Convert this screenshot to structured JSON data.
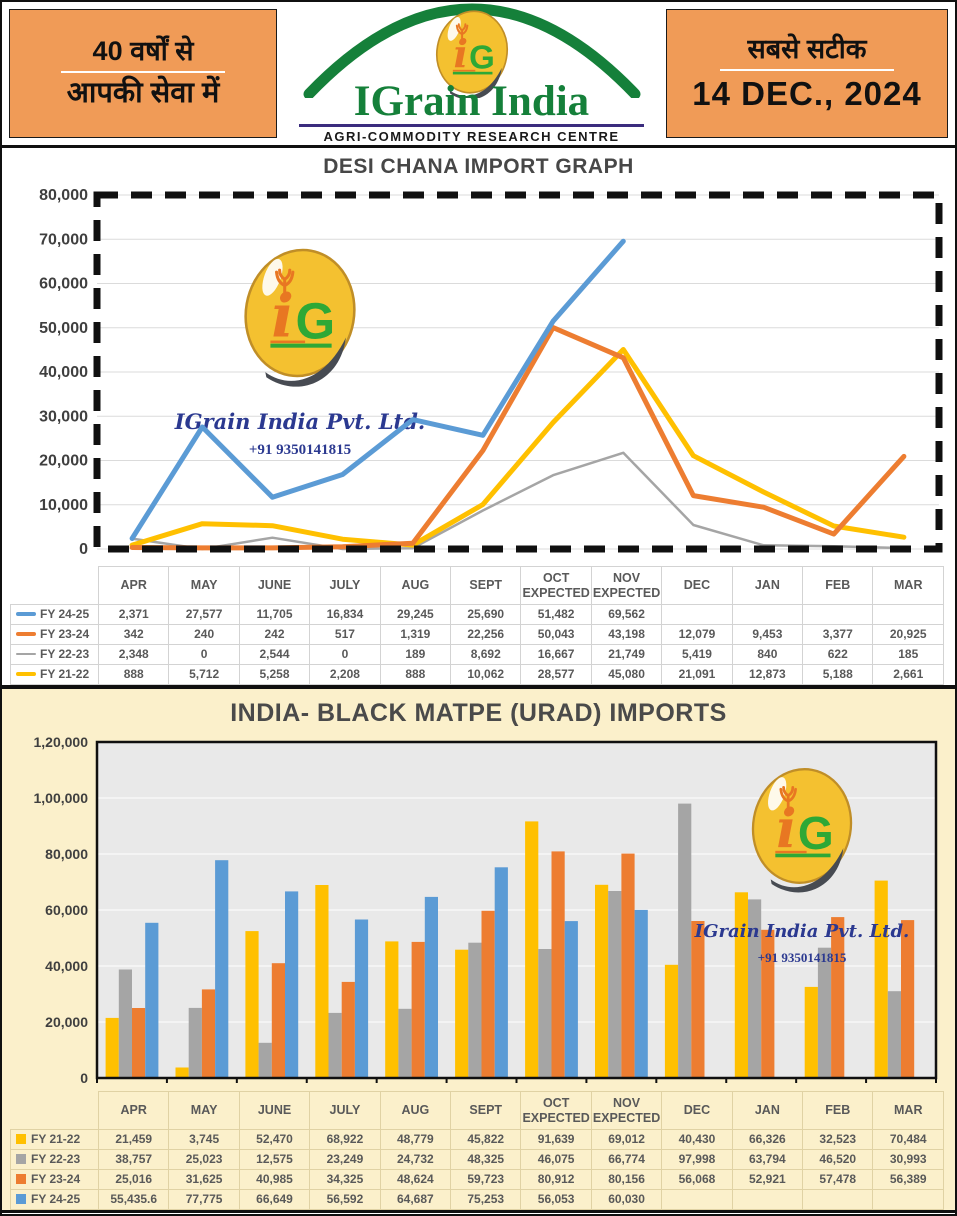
{
  "header": {
    "left": {
      "line1": "40 वर्षों से",
      "line2": "आपकी सेवा में"
    },
    "brand": {
      "name": "IGrain India",
      "subtitle": "AGRI-COMMODITY RESEARCH CENTRE",
      "monogram_i": "i",
      "monogram_g": "G"
    },
    "right": {
      "line1": "सबसे सटीक",
      "line2": "14 DEC., 2024"
    }
  },
  "watermark": {
    "company": "IGrain India Pvt. Ltd.",
    "phone": "+91 9350141815"
  },
  "colors": {
    "header_orange": "#F09B57",
    "brand_green": "#15803A",
    "cream_bg": "#FBF0CB",
    "plot_gray": "#E9E9E9",
    "series_blue": "#5B9BD5",
    "series_orange": "#ED7D31",
    "series_gray": "#A5A5A5",
    "series_yellow": "#FFC000"
  },
  "chart_data": [
    {
      "type": "line",
      "title": "DESI CHANA IMPORT GRAPH",
      "categories": [
        "APR",
        "MAY",
        "JUNE",
        "JULY",
        "AUG",
        "SEPT",
        "OCT EXPECTED",
        "NOV EXPECTED",
        "DEC",
        "JAN",
        "FEB",
        "MAR"
      ],
      "ylim": [
        0,
        80000
      ],
      "ytick_labels": [
        "0",
        "10,000",
        "20,000",
        "30,000",
        "40,000",
        "50,000",
        "60,000",
        "70,000",
        "80,000"
      ],
      "grid": true,
      "legend_marker": "line",
      "legend_position": "table-left",
      "series": [
        {
          "name": "FY 24-25",
          "color": "#5B9BD5",
          "line_width": 5,
          "values": [
            2371,
            27577,
            11705,
            16834,
            29245,
            25690,
            51482,
            69562,
            null,
            null,
            null,
            null
          ],
          "display": [
            "2,371",
            "27,577",
            "11,705",
            "16,834",
            "29,245",
            "25,690",
            "51,482",
            "69,562",
            "",
            "",
            "",
            ""
          ]
        },
        {
          "name": "FY 23-24",
          "color": "#ED7D31",
          "line_width": 5,
          "values": [
            342,
            240,
            242,
            517,
            1319,
            22256,
            50043,
            43198,
            12079,
            9453,
            3377,
            20925
          ],
          "display": [
            "342",
            "240",
            "242",
            "517",
            "1,319",
            "22,256",
            "50,043",
            "43,198",
            "12,079",
            "9,453",
            "3,377",
            "20,925"
          ]
        },
        {
          "name": "FY 22-23",
          "color": "#A5A5A5",
          "line_width": 2.5,
          "values": [
            2348,
            0,
            2544,
            0,
            189,
            8692,
            16667,
            21749,
            5419,
            840,
            622,
            185
          ],
          "display": [
            "2,348",
            "0",
            "2,544",
            "0",
            "189",
            "8,692",
            "16,667",
            "21,749",
            "5,419",
            "840",
            "622",
            "185"
          ]
        },
        {
          "name": "FY 21-22",
          "color": "#FFC000",
          "line_width": 5,
          "values": [
            888,
            5712,
            5258,
            2208,
            888,
            10062,
            28577,
            45080,
            21091,
            12873,
            5188,
            2661
          ],
          "display": [
            "888",
            "5,712",
            "5,258",
            "2,208",
            "888",
            "10,062",
            "28,577",
            "45,080",
            "21,091",
            "12,873",
            "5,188",
            "2,661"
          ]
        }
      ]
    },
    {
      "type": "bar",
      "title": "INDIA- BLACK MATPE (URAD) IMPORTS",
      "categories": [
        "APR",
        "MAY",
        "JUNE",
        "JULY",
        "AUG",
        "SEPT",
        "OCT EXPECTED",
        "NOV EXPECTED",
        "DEC",
        "JAN",
        "FEB",
        "MAR"
      ],
      "ylim": [
        0,
        120000
      ],
      "ytick_labels": [
        "0",
        "20,000",
        "40,000",
        "60,000",
        "80,000",
        "1,00,000",
        "1,20,000"
      ],
      "grid": true,
      "legend_marker": "square",
      "legend_position": "table-left",
      "series": [
        {
          "name": "FY 21-22",
          "color": "#FFC000",
          "values": [
            21459,
            3745,
            52470,
            68922,
            48779,
            45822,
            91639,
            69012,
            40430,
            66326,
            32523,
            70484
          ],
          "display": [
            "21,459",
            "3,745",
            "52,470",
            "68,922",
            "48,779",
            "45,822",
            "91,639",
            "69,012",
            "40,430",
            "66,326",
            "32,523",
            "70,484"
          ]
        },
        {
          "name": "FY 22-23",
          "color": "#A5A5A5",
          "values": [
            38757,
            25023,
            12575,
            23249,
            24732,
            48325,
            46075,
            66774,
            97998,
            63794,
            46520,
            30993
          ],
          "display": [
            "38,757",
            "25,023",
            "12,575",
            "23,249",
            "24,732",
            "48,325",
            "46,075",
            "66,774",
            "97,998",
            "63,794",
            "46,520",
            "30,993"
          ]
        },
        {
          "name": "FY 23-24",
          "color": "#ED7D31",
          "values": [
            25016,
            31625,
            40985,
            34325,
            48624,
            59723,
            80912,
            80156,
            56068,
            52921,
            57478,
            56389
          ],
          "display": [
            "25,016",
            "31,625",
            "40,985",
            "34,325",
            "48,624",
            "59,723",
            "80,912",
            "80,156",
            "56,068",
            "52,921",
            "57,478",
            "56,389"
          ]
        },
        {
          "name": "FY 24-25",
          "color": "#5B9BD5",
          "values": [
            55435.6,
            77775,
            66649,
            56592,
            64687,
            75253,
            56053,
            60030,
            null,
            null,
            null,
            null
          ],
          "display": [
            "55,435.6",
            "77,775",
            "66,649",
            "56,592",
            "64,687",
            "75,253",
            "56,053",
            "60,030",
            "",
            "",
            "",
            ""
          ]
        }
      ]
    }
  ]
}
